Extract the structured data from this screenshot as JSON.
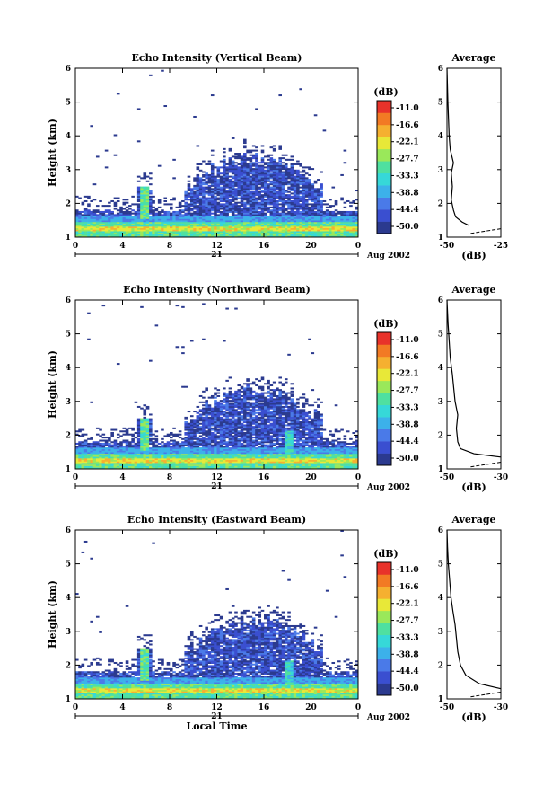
{
  "chart_data": [
    {
      "type": "heatmap",
      "title": "Echo Intensity (Vertical Beam)",
      "ylabel": "Height (km)",
      "xlabel": "",
      "xlim": [
        0,
        24
      ],
      "ylim": [
        1,
        6
      ],
      "xticks": [
        "0",
        "4",
        "8",
        "12",
        "16",
        "20",
        "0"
      ],
      "yticks": [
        "1",
        "2",
        "3",
        "4",
        "5",
        "6"
      ],
      "date_label": "21",
      "month_label": "Aug 2002",
      "colorbar": {
        "label": "(dB)",
        "ticks": [
          "-11.0",
          "-16.6",
          "-22.1",
          "-27.7",
          "-33.3",
          "-38.8",
          "-44.4",
          "-50.0"
        ]
      },
      "profile": {
        "title": "Average",
        "xlabel": "(dB)",
        "xticks": [
          "-50",
          "-25"
        ],
        "xlim": [
          -50,
          -25
        ],
        "yticks": [
          "1",
          "2",
          "3",
          "4",
          "5",
          "6"
        ],
        "points": [
          [
            -40,
            1.35
          ],
          [
            -43,
            1.45
          ],
          [
            -46,
            1.6
          ],
          [
            -47,
            1.8
          ],
          [
            -48,
            2.1
          ],
          [
            -47.5,
            2.5
          ],
          [
            -48,
            2.9
          ],
          [
            -47,
            3.2
          ],
          [
            -48.5,
            3.6
          ],
          [
            -49,
            4.0
          ],
          [
            -49.3,
            4.5
          ],
          [
            -49.6,
            5.0
          ],
          [
            -49.8,
            5.5
          ],
          [
            -50,
            6.0
          ]
        ],
        "points2": [
          [
            -25,
            1.25
          ],
          [
            -40,
            1.1
          ]
        ]
      }
    },
    {
      "type": "heatmap",
      "title": "Echo Intensity (Northward Beam)",
      "ylabel": "Height (km)",
      "xlabel": "",
      "xlim": [
        0,
        24
      ],
      "ylim": [
        1,
        6
      ],
      "xticks": [
        "0",
        "4",
        "8",
        "12",
        "16",
        "20",
        "0"
      ],
      "yticks": [
        "1",
        "2",
        "3",
        "4",
        "5",
        "6"
      ],
      "date_label": "21",
      "month_label": "Aug 2002",
      "colorbar": {
        "label": "(dB)",
        "ticks": [
          "-11.0",
          "-16.6",
          "-22.1",
          "-27.7",
          "-33.3",
          "-38.8",
          "-44.4",
          "-50.0"
        ]
      },
      "profile": {
        "title": "Average",
        "xlabel": "(dB)",
        "xticks": [
          "-50",
          "-30"
        ],
        "xlim": [
          -50,
          -30
        ],
        "yticks": [
          "1",
          "2",
          "3",
          "4",
          "5",
          "6"
        ],
        "points": [
          [
            -30,
            1.35
          ],
          [
            -40,
            1.45
          ],
          [
            -45,
            1.6
          ],
          [
            -46,
            1.8
          ],
          [
            -46.5,
            2.2
          ],
          [
            -46,
            2.6
          ],
          [
            -47,
            3.0
          ],
          [
            -47.5,
            3.4
          ],
          [
            -48,
            3.8
          ],
          [
            -48.8,
            4.3
          ],
          [
            -49.2,
            4.8
          ],
          [
            -49.6,
            5.3
          ],
          [
            -50,
            6.0
          ]
        ],
        "points2": [
          [
            -30,
            1.2
          ],
          [
            -42,
            1.05
          ]
        ]
      }
    },
    {
      "type": "heatmap",
      "title": "Echo Intensity (Eastward Beam)",
      "ylabel": "Height (km)",
      "xlabel": "Local Time",
      "xlim": [
        0,
        24
      ],
      "ylim": [
        1,
        6
      ],
      "xticks": [
        "0",
        "4",
        "8",
        "12",
        "16",
        "20",
        "0"
      ],
      "yticks": [
        "1",
        "2",
        "3",
        "4",
        "5",
        "6"
      ],
      "date_label": "21",
      "month_label": "Aug 2002",
      "colorbar": {
        "label": "(dB)",
        "ticks": [
          "-11.0",
          "-16.6",
          "-22.1",
          "-27.7",
          "-33.3",
          "-38.8",
          "-44.4",
          "-50.0"
        ]
      },
      "profile": {
        "title": "Average",
        "xlabel": "(dB)",
        "xticks": [
          "-50",
          "-30"
        ],
        "xlim": [
          -50,
          -30
        ],
        "yticks": [
          "1",
          "2",
          "3",
          "4",
          "5",
          "6"
        ],
        "points": [
          [
            -30,
            1.3
          ],
          [
            -38,
            1.45
          ],
          [
            -43,
            1.7
          ],
          [
            -45,
            2.0
          ],
          [
            -46,
            2.4
          ],
          [
            -46.5,
            2.8
          ],
          [
            -47,
            3.2
          ],
          [
            -47.8,
            3.6
          ],
          [
            -48.5,
            4.0
          ],
          [
            -49,
            4.5
          ],
          [
            -49.5,
            5.0
          ],
          [
            -49.8,
            5.5
          ],
          [
            -50,
            6.0
          ]
        ],
        "points2": [
          [
            -30,
            1.2
          ],
          [
            -42,
            1.05
          ]
        ]
      }
    }
  ],
  "colors": {
    "scale": [
      "#2b3a8f",
      "#3a4fd0",
      "#4a7ae8",
      "#3cb1ea",
      "#36d8d8",
      "#4fe0a0",
      "#9ae85a",
      "#e8e838",
      "#f5b030",
      "#f27a24",
      "#e8322a"
    ]
  }
}
